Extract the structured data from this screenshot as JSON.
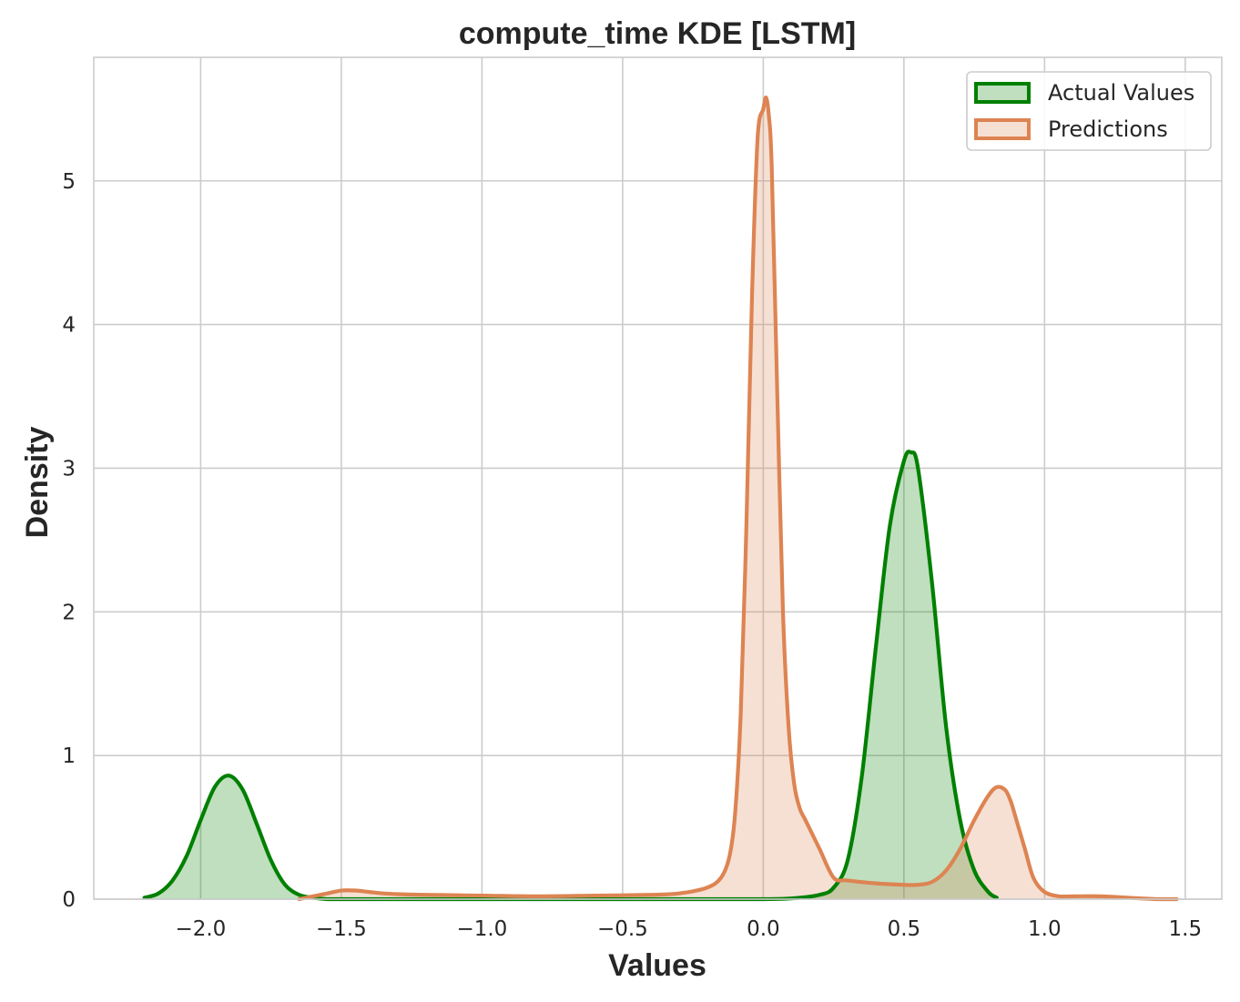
{
  "chart_data": {
    "type": "area",
    "title": "compute_time KDE [LSTM]",
    "xlabel": "Values",
    "ylabel": "Density",
    "xlim": [
      -2.38,
      1.63
    ],
    "ylim": [
      0,
      5.86
    ],
    "xticks": [
      -2.0,
      -1.5,
      -1.0,
      -0.5,
      0.0,
      0.5,
      1.0,
      1.5
    ],
    "xtick_labels": [
      "−2.0",
      "−1.5",
      "−1.0",
      "−0.5",
      "0.0",
      "0.5",
      "1.0",
      "1.5"
    ],
    "yticks": [
      0,
      1,
      2,
      3,
      4,
      5
    ],
    "ytick_labels": [
      "0",
      "1",
      "2",
      "3",
      "4",
      "5"
    ],
    "grid": true,
    "legend_position": "top-right",
    "series": [
      {
        "name": "Actual Values",
        "line_color": "#008000",
        "fill_color": "#008000",
        "fill_opacity": 0.25,
        "x": [
          -2.2,
          -2.15,
          -2.1,
          -2.05,
          -2.0,
          -1.95,
          -1.9,
          -1.85,
          -1.8,
          -1.75,
          -1.7,
          -1.65,
          -1.6,
          -1.55,
          -1.5,
          -1.45,
          -1.4,
          -1.3,
          -1.2,
          -1.0,
          -0.8,
          -0.6,
          -0.4,
          -0.2,
          0.0,
          0.1,
          0.2,
          0.25,
          0.3,
          0.35,
          0.4,
          0.45,
          0.5,
          0.525,
          0.55,
          0.6,
          0.65,
          0.7,
          0.75,
          0.8,
          0.83
        ],
        "y": [
          0.01,
          0.04,
          0.13,
          0.3,
          0.55,
          0.78,
          0.86,
          0.76,
          0.52,
          0.27,
          0.1,
          0.03,
          0.01,
          0.0,
          0.0,
          0.0,
          0.0,
          0.0,
          0.0,
          0.0,
          0.0,
          0.0,
          0.0,
          0.0,
          0.0,
          0.005,
          0.03,
          0.08,
          0.27,
          0.85,
          1.75,
          2.6,
          3.05,
          3.11,
          3.0,
          2.2,
          1.2,
          0.55,
          0.2,
          0.05,
          0.01
        ]
      },
      {
        "name": "Predictions",
        "line_color": "#dd8452",
        "fill_color": "#dd8452",
        "fill_opacity": 0.25,
        "x": [
          -1.65,
          -1.6,
          -1.55,
          -1.5,
          -1.45,
          -1.4,
          -1.35,
          -1.3,
          -1.2,
          -1.0,
          -0.8,
          -0.6,
          -0.4,
          -0.3,
          -0.2,
          -0.15,
          -0.12,
          -0.1,
          -0.08,
          -0.06,
          -0.04,
          -0.02,
          0.0,
          0.01,
          0.02,
          0.03,
          0.05,
          0.07,
          0.09,
          0.11,
          0.13,
          0.15,
          0.2,
          0.25,
          0.3,
          0.4,
          0.5,
          0.55,
          0.6,
          0.65,
          0.7,
          0.75,
          0.8,
          0.83,
          0.86,
          0.88,
          0.9,
          0.93,
          0.96,
          1.0,
          1.05,
          1.1,
          1.2,
          1.3,
          1.4,
          1.47
        ],
        "y": [
          0.0,
          0.02,
          0.04,
          0.06,
          0.06,
          0.05,
          0.04,
          0.035,
          0.03,
          0.025,
          0.02,
          0.025,
          0.03,
          0.04,
          0.08,
          0.15,
          0.3,
          0.6,
          1.3,
          2.6,
          4.2,
          5.3,
          5.5,
          5.58,
          5.45,
          5.1,
          3.5,
          2.0,
          1.2,
          0.8,
          0.63,
          0.55,
          0.35,
          0.15,
          0.13,
          0.11,
          0.1,
          0.1,
          0.12,
          0.2,
          0.35,
          0.55,
          0.72,
          0.78,
          0.76,
          0.68,
          0.55,
          0.35,
          0.15,
          0.05,
          0.02,
          0.02,
          0.02,
          0.01,
          0.0,
          0.0
        ]
      }
    ]
  }
}
